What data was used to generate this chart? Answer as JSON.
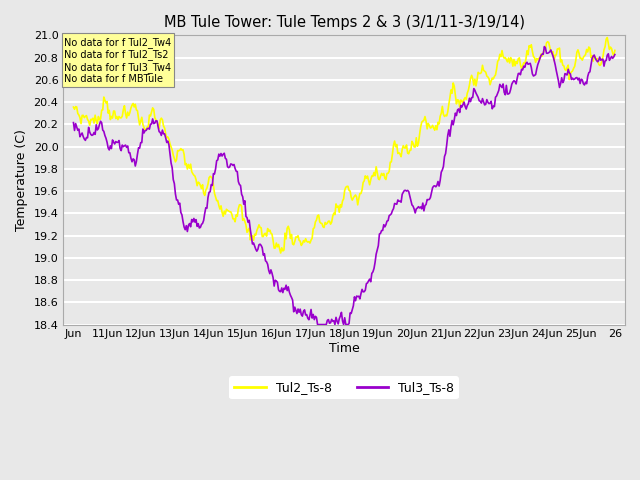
{
  "title": "MB Tule Tower: Tule Temps 2 & 3 (3/1/11-3/19/14)",
  "xlabel": "Time",
  "ylabel": "Temperature (C)",
  "bg_color": "#e8e8e8",
  "plot_bg_color": "#e8e8e8",
  "ylim": [
    18.4,
    21.0
  ],
  "yticks": [
    18.4,
    18.6,
    18.8,
    19.0,
    19.2,
    19.4,
    19.6,
    19.8,
    20.0,
    20.2,
    20.4,
    20.6,
    20.8,
    21.0
  ],
  "x_labels": [
    "Jun",
    "11Jun",
    "12Jun",
    "13Jun",
    "14Jun",
    "15Jun",
    "16Jun",
    "17Jun",
    "18Jun",
    "19Jun",
    "20Jun",
    "21Jun",
    "22Jun",
    "23Jun",
    "24Jun",
    "25Jun",
    "26"
  ],
  "line1_color": "#ffff00",
  "line2_color": "#9900cc",
  "line1_label": "Tul2_Ts-8",
  "line2_label": "Tul3_Ts-8",
  "no_data_lines": [
    "No data for f Tul2_Tw4",
    "No data for f Tul2_Ts2",
    "No data for f Tul3_Tw4",
    "No data for f MBTule"
  ],
  "legend_box_color": "#ffff99",
  "figwidth": 6.4,
  "figheight": 4.8,
  "dpi": 100
}
